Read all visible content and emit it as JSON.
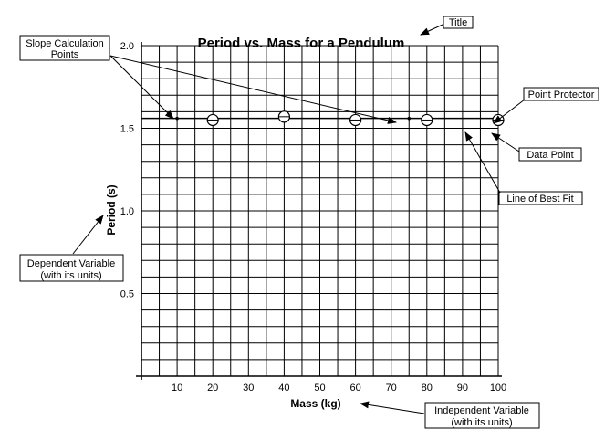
{
  "chart_data": {
    "type": "scatter",
    "title": "Period vs. Mass for a Pendulum",
    "xlabel": "Mass (kg)",
    "ylabel": "Period (s)",
    "xlim": [
      0,
      100
    ],
    "ylim": [
      0,
      2.0
    ],
    "x_ticks": [
      10,
      20,
      30,
      40,
      50,
      60,
      70,
      80,
      90,
      100
    ],
    "x_tick_labels": [
      "10",
      "20",
      "30",
      "40",
      "50",
      "60",
      "70",
      "80",
      "90",
      "100"
    ],
    "y_ticks": [
      0.5,
      1.0,
      1.5,
      2.0
    ],
    "y_tick_labels": [
      "0.5",
      "1.0",
      "1.5",
      "2.0"
    ],
    "grid": true,
    "series": [
      {
        "name": "Data Point",
        "x": [
          20,
          40,
          60,
          80,
          100
        ],
        "y": [
          1.55,
          1.57,
          1.55,
          1.55,
          1.55
        ]
      }
    ],
    "best_fit_line": {
      "y_intercept": 1.56,
      "slope": 0
    },
    "slope_points": [
      {
        "x": 10,
        "y": 1.56
      },
      {
        "x": 75,
        "y": 1.56
      }
    ]
  },
  "annotations": {
    "title": "Title",
    "slope_line1": "Slope Calculation",
    "slope_line2": "Points",
    "point_protector": "Point Protector",
    "data_point": "Data Point",
    "best_fit": "Line of Best Fit",
    "dependent_line1": "Dependent Variable",
    "dependent_line2": "(with its units)",
    "independent_line1": "Independent Variable",
    "independent_line2": "(with its units)"
  }
}
